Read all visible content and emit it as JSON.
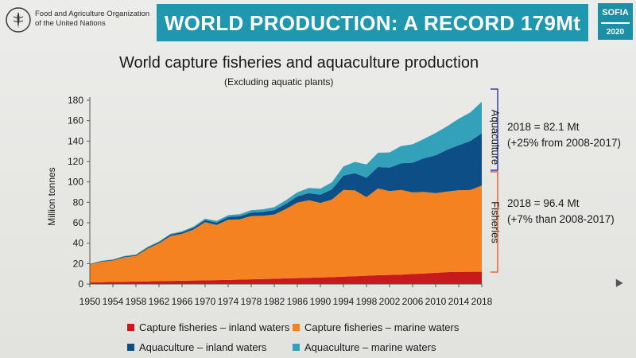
{
  "header": {
    "org_name_line1": "Food and Agriculture Organization",
    "org_name_line2": "of the United Nations",
    "banner_title": "WORLD PRODUCTION: A RECORD 179Mt",
    "badge_line1": "SOFIA",
    "badge_line2": "2020"
  },
  "colors": {
    "banner": "#1f97ae",
    "capture_inland": "#c8191c",
    "capture_marine": "#f58220",
    "aqua_inland": "#0d4e86",
    "aqua_marine": "#33a1b9",
    "bracket_aquaculture": "#3a3ab0",
    "bracket_fisheries": "#e7663a"
  },
  "annotations": {
    "aquaculture_label": "Aquaculture",
    "aquaculture_line1": "2018 = 82.1 Mt",
    "aquaculture_line2": "(+25% from 2008-2017)",
    "fisheries_label": "Fisheries",
    "fisheries_line1": "2018 = 96.4 Mt",
    "fisheries_line2": "(+7% than 2008-2017)"
  },
  "chart_data": {
    "type": "area",
    "stacked": true,
    "title": "World capture fisheries and aquaculture production",
    "subtitle": "(Excluding aquatic plants)",
    "xlabel": "",
    "ylabel": "Million tonnes",
    "ylim": [
      0,
      180
    ],
    "yticks": [
      0,
      20,
      40,
      60,
      80,
      100,
      120,
      140,
      160,
      180
    ],
    "xticks": [
      "1950",
      "1954",
      "1958",
      "1962",
      "1966",
      "1970",
      "1974",
      "1978",
      "1982",
      "1986",
      "1990",
      "1994",
      "1998",
      "2002",
      "2006",
      "2010",
      "2014",
      "2018"
    ],
    "grid": false,
    "legend_position": "bottom",
    "x": [
      1950,
      1952,
      1954,
      1956,
      1958,
      1960,
      1962,
      1964,
      1966,
      1968,
      1970,
      1972,
      1974,
      1976,
      1978,
      1980,
      1982,
      1984,
      1986,
      1988,
      1990,
      1992,
      1994,
      1996,
      1998,
      2000,
      2002,
      2004,
      2006,
      2008,
      2010,
      2012,
      2014,
      2016,
      2018
    ],
    "series": [
      {
        "name": "Capture fisheries – inland waters",
        "color": "#c8191c",
        "values": [
          1.5,
          1.8,
          2,
          2.2,
          2.4,
          2.6,
          2.8,
          3,
          3.2,
          3.4,
          3.6,
          3.8,
          4,
          4.3,
          4.6,
          4.8,
          5.1,
          5.5,
          5.8,
          6.1,
          6.4,
          6.7,
          7.2,
          7.6,
          8.1,
          8.6,
          8.9,
          9.2,
          9.8,
          10.2,
          11.0,
          11.6,
          11.9,
          12.0,
          12.0
        ]
      },
      {
        "name": "Capture fisheries – marine waters",
        "color": "#f58220",
        "values": [
          17.5,
          20,
          21,
          24,
          25,
          32,
          37,
          44,
          46,
          50,
          57,
          54,
          59,
          59,
          62,
          62,
          63,
          68,
          74,
          76,
          73,
          76,
          85,
          84,
          77,
          85,
          82,
          83,
          80,
          80,
          78,
          79,
          80,
          80,
          84.4
        ]
      },
      {
        "name": "Aquaculture – inland waters",
        "color": "#0d4e86",
        "values": [
          0.5,
          0.6,
          0.7,
          0.8,
          0.9,
          1,
          1.1,
          1.3,
          1.5,
          1.7,
          2,
          2.3,
          2.6,
          3,
          3.4,
          3.8,
          4.2,
          5,
          6,
          7,
          8,
          10,
          14,
          17,
          19,
          21,
          23,
          26,
          29,
          33,
          37,
          41,
          44,
          48,
          51.3
        ]
      },
      {
        "name": "Aquaculture – marine waters",
        "color": "#33a1b9",
        "values": [
          0.2,
          0.3,
          0.4,
          0.5,
          0.6,
          0.7,
          0.8,
          0.9,
          1,
          1.2,
          1.4,
          1.6,
          1.8,
          2,
          2.3,
          2.6,
          3,
          3.5,
          4,
          5,
          6,
          7,
          9,
          11,
          13,
          14,
          15,
          17,
          18,
          19,
          22,
          23,
          26,
          28,
          30.8
        ]
      }
    ]
  }
}
